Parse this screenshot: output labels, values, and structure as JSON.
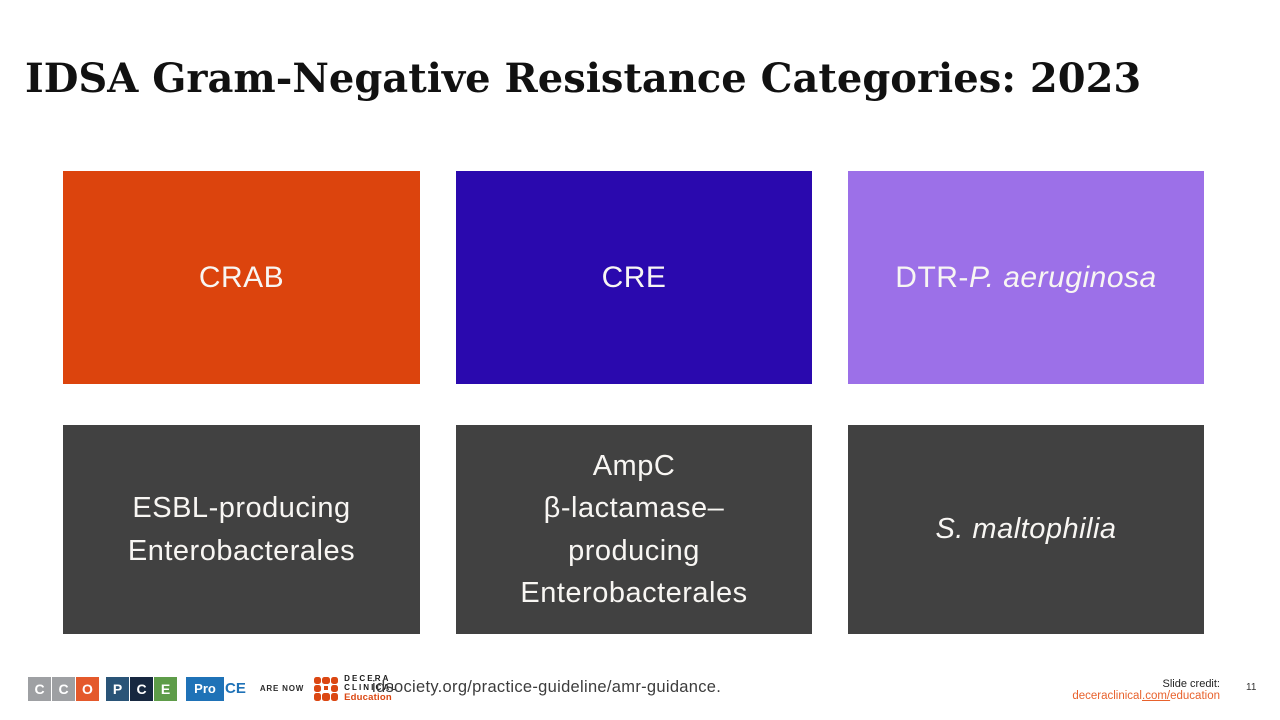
{
  "slide": {
    "title": "IDSA Gram-Negative Resistance Categories: 2023",
    "page_number": "11"
  },
  "boxes": [
    {
      "label": "CRAB",
      "bg": "#DC440D"
    },
    {
      "label": "CRE",
      "bg": "#2A09AE"
    },
    {
      "prefix": "DTR-",
      "species": "P. aeruginosa",
      "bg": "#9C70E8"
    },
    {
      "label": "ESBL-producing\nEnterobacterales",
      "bg": "#414141"
    },
    {
      "label": "AmpC\nβ-lactamase–\nproducing\nEnterobacterales",
      "bg": "#414141"
    },
    {
      "prefix": "",
      "species": "S. maltophilia",
      "bg": "#414141"
    }
  ],
  "footer": {
    "logos": {
      "cco": {
        "letters": [
          "C",
          "C",
          "O"
        ],
        "colors": [
          "#9EA0A3",
          "#9EA0A3",
          "#E4592B"
        ]
      },
      "pce": {
        "letters": [
          "P",
          "C",
          "E"
        ],
        "colors": [
          "#2A5477",
          "#172840",
          "#5E9C49"
        ]
      },
      "proce": {
        "pro": "Pro",
        "ce": "CE",
        "blue": "#1F72B7"
      },
      "decera": {
        "line1": "DECERA",
        "line2": "CLINICAL",
        "line3": "Education",
        "orange": "#DB4712"
      }
    },
    "are_now": "ARE NOW",
    "center_text": "idsociety.org/practice-guideline/amr-guidance.",
    "credit_label": "Slide credit:",
    "credit_link": {
      "pre": "deceraclinical",
      "mid": ".com/",
      "post": "education",
      "color": "#E8622D"
    }
  }
}
